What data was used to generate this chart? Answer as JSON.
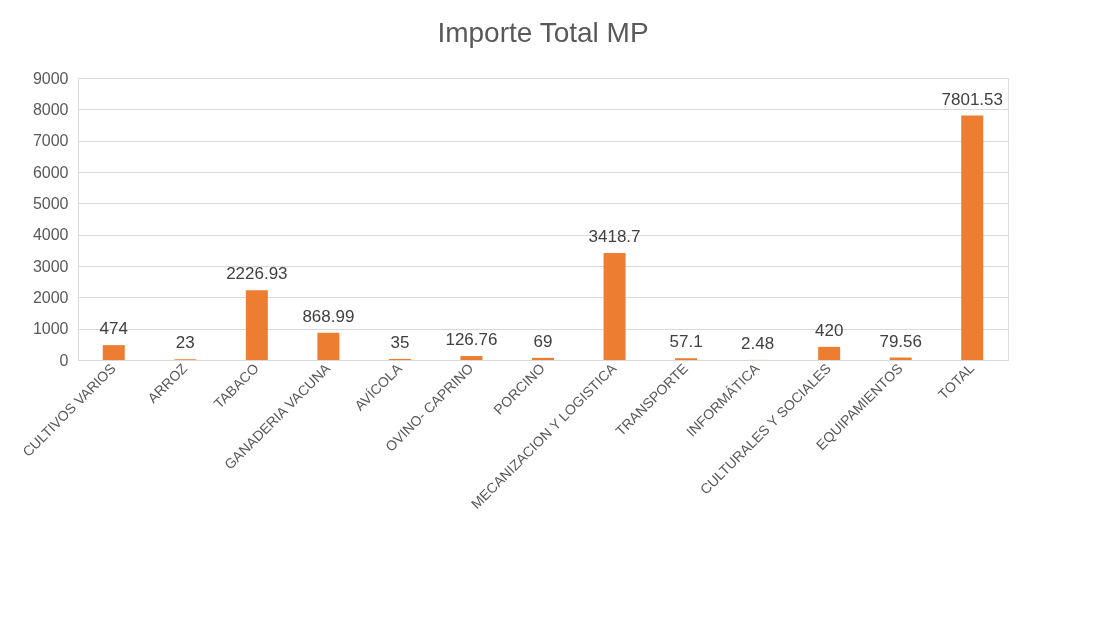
{
  "chart_data": {
    "type": "bar",
    "title": "Importe Total MP",
    "categories": [
      "CULTIVOS VARIOS",
      "ARROZ",
      "TABACO",
      "GANADERIA VACUNA",
      "AVÍCOLA",
      "OVINO- CAPRINO",
      "PORCINO",
      "MECANIZACION Y LOGISTICA",
      "TRANSPORTE",
      "INFORMÁTICA",
      "CULTURALES Y SOCIALES",
      "EQUIPAMIENTOS",
      "TOTAL"
    ],
    "values": [
      474,
      23,
      2226.93,
      868.99,
      35,
      126.76,
      69,
      3418.7,
      57.1,
      2.48,
      420,
      79.56,
      7801.53
    ],
    "color": "#ed7d31",
    "ylim": [
      0,
      9000
    ],
    "yticks": [
      0,
      1000,
      2000,
      3000,
      4000,
      5000,
      6000,
      7000,
      8000,
      9000
    ],
    "grid": "y",
    "data_labels": true
  }
}
